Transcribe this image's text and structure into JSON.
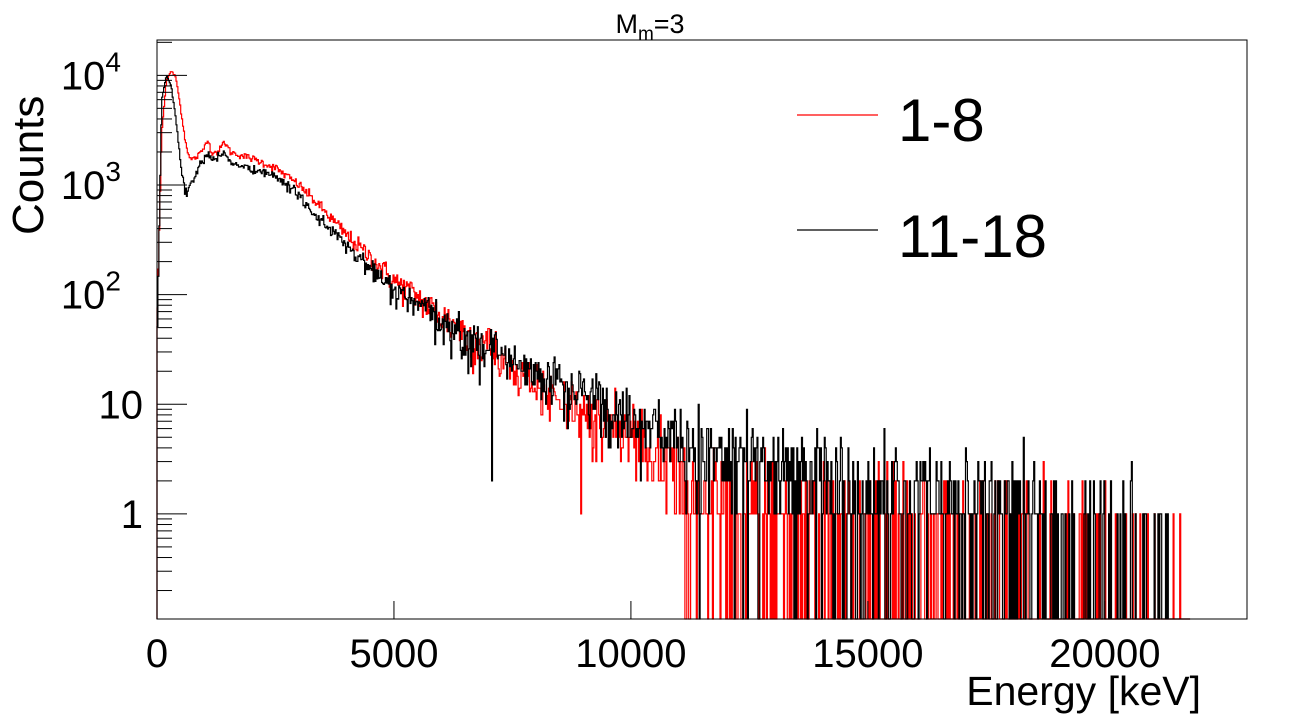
{
  "chart_data": {
    "type": "line",
    "style": "step-histogram",
    "title": "M",
    "title_subscript": "m",
    "title_suffix": "=3",
    "xlabel": "Energy [keV]",
    "ylabel": "Counts",
    "xlim": [
      0,
      23000
    ],
    "ylim": [
      0.11,
      21000
    ],
    "yscale": "log",
    "grid": false,
    "x_ticks": [
      0,
      5000,
      10000,
      15000,
      20000
    ],
    "x_tick_labels": [
      "0",
      "5000",
      "10000",
      "15000",
      "20000"
    ],
    "y_ticks": [
      1,
      10,
      100,
      1000,
      10000
    ],
    "y_tick_labels": [
      {
        "base": "1",
        "exp": ""
      },
      {
        "base": "10",
        "exp": ""
      },
      {
        "base": "10",
        "exp": "2"
      },
      {
        "base": "10",
        "exp": "3"
      },
      {
        "base": "10",
        "exp": "4"
      }
    ],
    "legend_position": "top-right",
    "x": [
      0,
      100,
      200,
      300,
      400,
      500,
      600,
      700,
      800,
      900,
      1000,
      1060,
      1150,
      1300,
      1420,
      1550,
      1700,
      2000,
      2500,
      3000,
      3500,
      4000,
      4500,
      5000,
      5500,
      6000,
      6500,
      7000,
      7500,
      8000,
      8500,
      9000,
      9500,
      10000,
      10500,
      11000,
      11500,
      12000,
      13000,
      14000,
      15000,
      16000,
      17000,
      18000,
      19000,
      20000,
      21000,
      21800
    ],
    "series": [
      {
        "name": "1-8",
        "color": "#ff0000",
        "values": [
          50,
          3000,
          9000,
          11000,
          9500,
          5000,
          2500,
          1700,
          1750,
          1900,
          2200,
          2700,
          2000,
          2000,
          2500,
          2000,
          1900,
          1750,
          1430,
          1000,
          600,
          350,
          220,
          135,
          95,
          65,
          45,
          35,
          22,
          15,
          11,
          8,
          6,
          5,
          3,
          2,
          1.5,
          1.2,
          1,
          0.9,
          0.8,
          0.6,
          0.5,
          0.4,
          0.3,
          0.2,
          0.15,
          0
        ]
      },
      {
        "name": "11-18",
        "color": "#000000",
        "values": [
          30,
          6000,
          10000,
          8000,
          4000,
          1500,
          870,
          1000,
          1200,
          1500,
          1700,
          1950,
          1750,
          1750,
          2000,
          1600,
          1500,
          1400,
          1200,
          800,
          450,
          280,
          170,
          110,
          80,
          55,
          40,
          33,
          25,
          20,
          16,
          13,
          10,
          8,
          6,
          5,
          4,
          3,
          2.5,
          2,
          1.6,
          1.3,
          1.1,
          0.9,
          0.7,
          0.5,
          0.3,
          0
        ]
      }
    ]
  }
}
